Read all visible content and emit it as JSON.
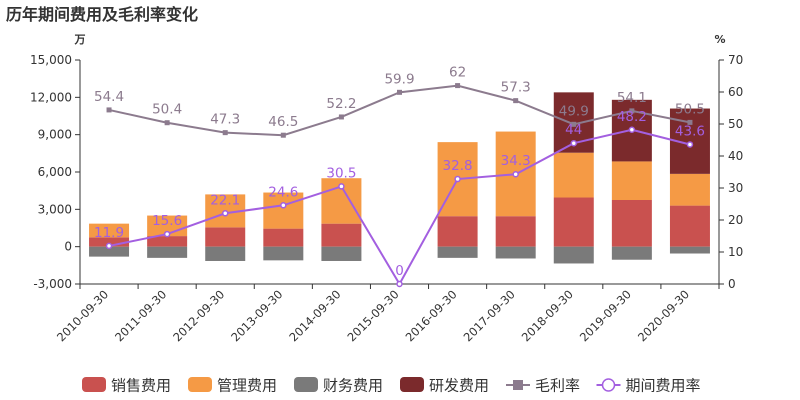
{
  "chart_data": {
    "type": "bar",
    "title": "历年期间费用及毛利率变化",
    "left_axis_unit": "万",
    "right_axis_unit": "%",
    "categories": [
      "2010-09-30",
      "2011-09-30",
      "2012-09-30",
      "2013-09-30",
      "2014-09-30",
      "2015-09-30",
      "2016-09-30",
      "2017-09-30",
      "2018-09-30",
      "2019-09-30",
      "2020-09-30"
    ],
    "ylim_left": [
      -3000,
      15000
    ],
    "yticks_left": [
      15000,
      12000,
      9000,
      6000,
      3000,
      0,
      -3000
    ],
    "ytick_labels_left": [
      "15,000",
      "12,000",
      "9,000",
      "6,000",
      "3,000",
      "0",
      "-3,000"
    ],
    "ylim_right": [
      0,
      70
    ],
    "yticks_right": [
      70,
      60,
      50,
      40,
      30,
      20,
      10,
      0
    ],
    "ytick_labels_right": [
      "70",
      "60",
      "50",
      "40",
      "30",
      "20",
      "10",
      "0"
    ],
    "stacked_bars": true,
    "series": [
      {
        "name": "销售费用",
        "kind": "bar",
        "axis": "left",
        "color": "#c9514f",
        "values": [
          750,
          850,
          1550,
          1450,
          1850,
          0,
          2450,
          2450,
          3950,
          3750,
          3300
        ]
      },
      {
        "name": "管理费用",
        "kind": "bar",
        "axis": "left",
        "color": "#f59a45",
        "values": [
          1100,
          1650,
          2650,
          2900,
          3650,
          0,
          5950,
          6800,
          3600,
          3100,
          2550
        ]
      },
      {
        "name": "财务费用",
        "kind": "bar",
        "axis": "left",
        "color": "#7a7a7a",
        "values": [
          -800,
          -900,
          -1150,
          -1100,
          -1150,
          0,
          -900,
          -950,
          -1350,
          -1050,
          -550
        ]
      },
      {
        "name": "研发费用",
        "kind": "bar",
        "axis": "left",
        "color": "#7b2a2c",
        "values": [
          0,
          0,
          0,
          0,
          0,
          0,
          0,
          0,
          4850,
          4950,
          5250
        ]
      },
      {
        "name": "毛利率",
        "kind": "line",
        "axis": "right",
        "color": "#8c7b8e",
        "marker": "square",
        "values": [
          54.4,
          50.4,
          47.3,
          46.5,
          52.2,
          59.9,
          62,
          57.3,
          49.9,
          54.1,
          50.5
        ],
        "labels": [
          "54.4",
          "50.4",
          "47.3",
          "46.5",
          "52.2",
          "59.9",
          "62",
          "57.3",
          "49.9",
          "54.1",
          "50.5"
        ]
      },
      {
        "name": "期间费用率",
        "kind": "line",
        "axis": "right",
        "color": "#a35fe0",
        "marker": "circle",
        "values": [
          11.9,
          15.6,
          22.1,
          24.6,
          30.5,
          0,
          32.8,
          34.3,
          44,
          48.2,
          43.6
        ],
        "labels": [
          "11.9",
          "15.6",
          "22.1",
          "24.6",
          "30.5",
          "0",
          "32.8",
          "34.3",
          "44",
          "48.2",
          "43.6"
        ]
      }
    ],
    "legend": {
      "position": "bottom-center",
      "items": [
        "销售费用",
        "管理费用",
        "财务费用",
        "研发费用",
        "毛利率",
        "期间费用率"
      ]
    },
    "grid": false
  }
}
